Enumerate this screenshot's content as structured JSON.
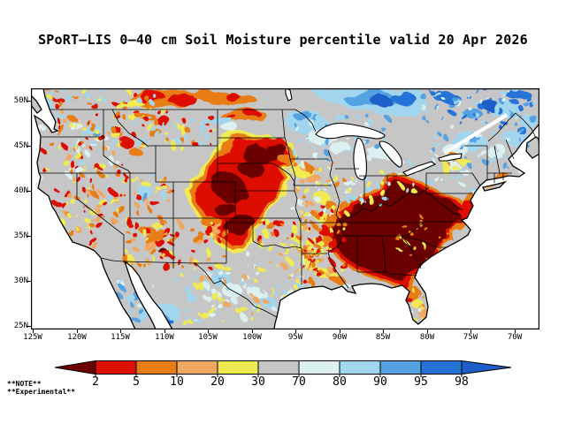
{
  "title": "SPoRT–LIS 0–40 cm Soil Moisture percentile valid 20 Apr 2026",
  "notes": {
    "line1": "**NOTE**",
    "line2": "**Experimental**"
  },
  "map": {
    "lat_ticks": [
      "50N",
      "45N",
      "40N",
      "35N",
      "30N",
      "25N"
    ],
    "lon_ticks": [
      "125W",
      "120W",
      "115W",
      "110W",
      "105W",
      "100W",
      "95W",
      "90W",
      "85W",
      "80W",
      "75W",
      "70W"
    ]
  },
  "colorbar": {
    "labels": [
      "2",
      "5",
      "10",
      "20",
      "30",
      "70",
      "80",
      "90",
      "95",
      "98"
    ],
    "segment_colors": [
      "#dd0f00",
      "#e87d16",
      "#f0a861",
      "#f0ea52",
      "#c6c6c6",
      "#dcf0f2",
      "#a2d6ee",
      "#54a2e2",
      "#2673d8"
    ],
    "left_arrow_color": "#6b0000",
    "right_arrow_color": "#1c5fc8"
  },
  "palette": {
    "maroon": "#6b0000",
    "red": "#dd0f00",
    "orange": "#e87d16",
    "tan": "#f0a861",
    "yellow": "#f0ea52",
    "gray": "#c6c6c6",
    "pale": "#dcf0f2",
    "lblue": "#a2d6ee",
    "mblue": "#54a2e2",
    "blue": "#2673d8",
    "dblue": "#1c5fc8"
  },
  "map_art": {
    "land_color": "#c6c6c6",
    "blobs": [
      [
        "p",
        "yellow",
        "225,48 268,52 296,62 301,78 288,92 297,104 283,120 272,138 262,152 255,168 246,182 228,187 210,177 200,161 188,145 178,129 172,112 186,96 196,84 212,66"
      ],
      [
        "p",
        "orange",
        "228,52 266,56 292,65 297,79 285,92 293,104 279,119 269,136 259,151 252,166 243,179 228,183 212,174 203,159 191,143 182,129 177,113 189,98 199,87 214,70"
      ],
      [
        "p",
        "red",
        "232,57 263,60 287,68 292,80 281,92 289,104 276,118 266,134 256,149 248,163 240,175 228,178 215,170 207,156 196,141 187,129 183,116 193,102 203,91 217,74"
      ],
      [
        "e",
        "maroon",
        262,
        74,
        22,
        12,
        -10
      ],
      [
        "e",
        "maroon",
        250,
        92,
        14,
        9,
        0
      ],
      [
        "e",
        "maroon",
        224,
        112,
        21,
        15,
        20
      ],
      [
        "e",
        "maroon",
        218,
        135,
        12,
        8,
        0
      ],
      [
        "e",
        "maroon",
        236,
        155,
        18,
        11,
        -15
      ],
      [
        "e",
        "red",
        272,
        62,
        15,
        7,
        -5
      ],
      [
        "e",
        "maroon",
        276,
        66,
        10,
        5,
        -5
      ],
      [
        "e",
        "orange",
        288,
        78,
        10,
        6,
        0
      ],
      [
        "e",
        "orange",
        150,
        11,
        42,
        10,
        0
      ],
      [
        "e",
        "red",
        172,
        13,
        18,
        6,
        0
      ],
      [
        "e",
        "red",
        136,
        7,
        14,
        5,
        0
      ],
      [
        "e",
        "orange",
        206,
        9,
        22,
        7,
        0
      ],
      [
        "e",
        "yellow",
        112,
        15,
        14,
        5,
        0
      ],
      [
        "e",
        "orange",
        236,
        11,
        17,
        6,
        0
      ],
      [
        "e",
        "red",
        226,
        8,
        8,
        4,
        0
      ],
      [
        "e",
        "orange",
        240,
        31,
        27,
        8,
        0
      ],
      [
        "e",
        "red",
        251,
        29,
        9,
        4,
        0
      ],
      [
        "e",
        "red",
        226,
        33,
        7,
        3,
        0
      ],
      [
        "e",
        "yellow",
        214,
        37,
        9,
        4,
        0
      ],
      [
        "e",
        "red",
        151,
        38,
        10,
        5,
        15
      ],
      [
        "e",
        "orange",
        131,
        31,
        9,
        4,
        0
      ],
      [
        "e",
        "red",
        108,
        62,
        9,
        6,
        0
      ],
      [
        "e",
        "orange",
        118,
        72,
        7,
        5,
        0
      ],
      [
        "e",
        "red",
        97,
        48,
        6,
        4,
        0
      ],
      [
        "e",
        "orange",
        140,
        50,
        8,
        4,
        0
      ],
      [
        "e",
        "lblue",
        216,
        37,
        13,
        5,
        0
      ],
      [
        "e",
        "pale",
        226,
        45,
        10,
        4,
        0
      ],
      [
        "e",
        "lblue",
        70,
        48,
        10,
        5,
        -10
      ],
      [
        "e",
        "pale",
        80,
        57,
        8,
        4,
        0
      ],
      [
        "e",
        "mblue",
        74,
        52,
        4,
        2,
        0
      ],
      [
        "e",
        "lblue",
        130,
        122,
        7,
        12,
        10
      ],
      [
        "e",
        "mblue",
        132,
        127,
        3,
        6,
        10
      ],
      [
        "p",
        "orange",
        "332,150 352,130 372,122 392,112 408,94 428,102 446,108 458,114 468,122 484,124 500,138 490,152 478,164 480,174 464,184 456,194 444,204 436,218 428,232 414,226 398,218 384,214 368,210 356,200 344,190 336,176 330,162"
      ],
      [
        "p",
        "red",
        "336,152 356,134 376,125 396,115 410,98 428,105 443,110 455,116 466,124 481,127 495,139 486,151 474,162 476,172 461,182 453,192 441,202 433,215 426,227 413,222 399,215 386,211 370,207 358,198 347,189 339,176 333,164"
      ],
      [
        "p",
        "maroon",
        "341,155 358,139 378,128 398,118 412,103 428,109 441,113 450,117 460,124 476,128 489,140 482,151 470,161 472,171 458,180 450,190 438,200 430,212 424,222 412,218 400,211 388,207 373,203 361,195 350,186 342,174 337,165"
      ],
      [
        "e",
        "orange",
        336,
        150,
        9,
        6,
        0
      ],
      [
        "e",
        "red",
        330,
        160,
        7,
        5,
        0
      ],
      [
        "e",
        "yellow",
        326,
        143,
        8,
        5,
        0
      ],
      [
        "e",
        "orange",
        333,
        172,
        8,
        6,
        0
      ],
      [
        "e",
        "red",
        340,
        182,
        6,
        4,
        0
      ],
      [
        "e",
        "yellow",
        322,
        186,
        7,
        4,
        0
      ],
      [
        "e",
        "orange",
        497,
        126,
        7,
        11,
        15
      ],
      [
        "e",
        "red",
        493,
        135,
        5,
        9,
        15
      ],
      [
        "e",
        "yellow",
        505,
        117,
        6,
        4,
        0
      ],
      [
        "e",
        "tan",
        521,
        110,
        10,
        3,
        -8
      ],
      [
        "e",
        "orange",
        532,
        101,
        9,
        4,
        -15
      ],
      [
        "e",
        "red",
        489,
        144,
        4,
        7,
        0
      ],
      [
        "e",
        "orange",
        432,
        232,
        9,
        7,
        0
      ],
      [
        "e",
        "yellow",
        436,
        243,
        7,
        5,
        0
      ],
      [
        "e",
        "tan",
        441,
        252,
        5,
        8,
        0
      ],
      [
        "e",
        "red",
        426,
        238,
        4,
        3,
        0
      ],
      [
        "e",
        "orange",
        312,
        192,
        10,
        6,
        70
      ],
      [
        "e",
        "yellow",
        318,
        203,
        8,
        5,
        0
      ],
      [
        "e",
        "red",
        315,
        184,
        5,
        4,
        0
      ],
      [
        "e",
        "yellow",
        335,
        211,
        12,
        6,
        0
      ],
      [
        "e",
        "orange",
        346,
        216,
        8,
        4,
        0
      ],
      [
        "e",
        "pale",
        353,
        222,
        8,
        3,
        0
      ],
      [
        "e",
        "orange",
        141,
        168,
        14,
        9,
        -20
      ],
      [
        "e",
        "red",
        148,
        177,
        6,
        4,
        0
      ],
      [
        "e",
        "maroon",
        151,
        186,
        5,
        3,
        0
      ],
      [
        "e",
        "red",
        157,
        190,
        6,
        4,
        0
      ],
      [
        "e",
        "orange",
        128,
        158,
        8,
        5,
        0
      ],
      [
        "e",
        "tan",
        135,
        178,
        8,
        5,
        0
      ],
      [
        "e",
        "orange",
        205,
        152,
        12,
        6,
        0
      ],
      [
        "e",
        "red",
        210,
        158,
        5,
        3,
        0
      ],
      [
        "e",
        "orange",
        188,
        170,
        7,
        4,
        0
      ],
      [
        "e",
        "lblue",
        215,
        216,
        13,
        8,
        20
      ],
      [
        "e",
        "pale",
        228,
        229,
        12,
        7,
        0
      ],
      [
        "e",
        "mblue",
        218,
        219,
        5,
        3,
        20
      ],
      [
        "e",
        "lblue",
        262,
        242,
        14,
        8,
        -10
      ],
      [
        "e",
        "pale",
        255,
        231,
        10,
        6,
        0
      ],
      [
        "e",
        "pale",
        290,
        236,
        10,
        4,
        -30
      ],
      [
        "e",
        "yellow",
        305,
        92,
        13,
        7,
        0
      ],
      [
        "e",
        "orange",
        312,
        88,
        6,
        3,
        0
      ],
      [
        "e",
        "tan",
        318,
        101,
        9,
        5,
        0
      ],
      [
        "e",
        "yellow",
        330,
        125,
        10,
        6,
        0
      ],
      [
        "e",
        "orange",
        338,
        132,
        6,
        4,
        0
      ],
      [
        "e",
        "lblue",
        311,
        38,
        24,
        14,
        10
      ],
      [
        "e",
        "mblue",
        306,
        30,
        10,
        6,
        0
      ],
      [
        "e",
        "pale",
        331,
        55,
        18,
        10,
        0
      ],
      [
        "e",
        "lblue",
        368,
        48,
        16,
        5,
        -8
      ],
      [
        "e",
        "pale",
        395,
        72,
        12,
        9,
        0
      ],
      [
        "e",
        "mblue",
        392,
        66,
        4,
        3,
        0
      ],
      [
        "e",
        "pale",
        352,
        70,
        12,
        7,
        0
      ],
      [
        "p",
        "lblue",
        "315,0 440,0 448,20 432,34 405,30 375,26 345,18 325,10"
      ],
      [
        "e",
        "mblue",
        385,
        13,
        30,
        9,
        0
      ],
      [
        "e",
        "dblue",
        398,
        16,
        12,
        6,
        0
      ],
      [
        "e",
        "blue",
        420,
        10,
        14,
        7,
        0
      ],
      [
        "e",
        "blue",
        470,
        10,
        14,
        7,
        0
      ],
      [
        "e",
        "dblue",
        520,
        20,
        10,
        5,
        0
      ],
      [
        "e",
        "blue",
        552,
        8,
        14,
        6,
        0
      ],
      [
        "e",
        "mblue",
        500,
        30,
        12,
        6,
        0
      ],
      [
        "e",
        "gray",
        461,
        31,
        10,
        6,
        0
      ],
      [
        "e",
        "lblue",
        540,
        25,
        16,
        8,
        0
      ],
      [
        "e",
        "lblue",
        565,
        40,
        10,
        8,
        0
      ],
      [
        "e",
        "lblue",
        497,
        62,
        18,
        10,
        -10
      ],
      [
        "e",
        "pale",
        481,
        71,
        14,
        8,
        0
      ],
      [
        "e",
        "mblue",
        505,
        57,
        6,
        4,
        0
      ],
      [
        "e",
        "pale",
        526,
        71,
        12,
        8,
        0
      ],
      [
        "e",
        "lblue",
        548,
        56,
        14,
        9,
        0
      ],
      [
        "e",
        "blue",
        555,
        48,
        6,
        4,
        0
      ],
      [
        "e",
        "orange",
        478,
        82,
        6,
        9,
        10
      ],
      [
        "e",
        "yellow",
        470,
        92,
        5,
        6,
        0
      ],
      [
        "e",
        "lblue",
        150,
        253,
        18,
        12,
        0
      ],
      [
        "e",
        "mblue",
        146,
        259,
        8,
        5,
        0
      ],
      [
        "e",
        "blue",
        155,
        263,
        5,
        3,
        0
      ],
      [
        "e",
        "lblue",
        128,
        253,
        7,
        10,
        20
      ]
    ],
    "speckles": [
      [
        5,
        25,
        100,
        78,
        120,
        1,
        3,
        [
          "orange",
          "red",
          "yellow",
          "lblue",
          "pale",
          "tan"
        ]
      ],
      [
        95,
        26,
        118,
        42,
        70,
        1,
        3,
        [
          "orange",
          "red",
          "yellow",
          "lblue"
        ]
      ],
      [
        58,
        96,
        105,
        58,
        80,
        1,
        3,
        [
          "orange",
          "yellow",
          "red",
          "tan",
          "lblue"
        ]
      ],
      [
        18,
        112,
        52,
        78,
        55,
        1,
        3,
        [
          "yellow",
          "orange",
          "tan",
          "red"
        ]
      ],
      [
        108,
        150,
        115,
        56,
        90,
        1,
        3,
        [
          "orange",
          "tan",
          "yellow",
          "red"
        ]
      ],
      [
        195,
        200,
        70,
        55,
        40,
        1,
        3,
        [
          "pale",
          "lblue",
          "yellow",
          "tan"
        ]
      ],
      [
        240,
        182,
        72,
        72,
        70,
        1,
        3,
        [
          "pale",
          "lblue",
          "yellow",
          "tan",
          "gray"
        ]
      ],
      [
        258,
        150,
        58,
        32,
        40,
        1,
        3,
        [
          "tan",
          "yellow",
          "orange",
          "red"
        ]
      ],
      [
        300,
        176,
        42,
        50,
        40,
        1,
        3,
        [
          "orange",
          "yellow",
          "tan",
          "red"
        ]
      ],
      [
        295,
        84,
        62,
        62,
        55,
        1,
        3,
        [
          "yellow",
          "tan",
          "orange",
          "pale"
        ]
      ],
      [
        355,
        95,
        52,
        40,
        30,
        1,
        3,
        [
          "pale",
          "yellow",
          "lblue"
        ]
      ],
      [
        295,
        25,
        112,
        58,
        60,
        1,
        3,
        [
          "pale",
          "lblue",
          "mblue"
        ]
      ],
      [
        15,
        0,
        130,
        22,
        40,
        1,
        3,
        [
          "orange",
          "yellow",
          "lblue",
          "red"
        ]
      ],
      [
        440,
        0,
        135,
        45,
        70,
        1,
        3,
        [
          "lblue",
          "blue",
          "mblue",
          "pale"
        ]
      ],
      [
        455,
        45,
        120,
        50,
        50,
        1,
        3,
        [
          "pale",
          "lblue",
          "gray",
          "mblue"
        ]
      ],
      [
        415,
        80,
        85,
        38,
        35,
        1,
        3,
        [
          "pale",
          "lblue",
          "yellow"
        ]
      ],
      [
        160,
        210,
        110,
        60,
        45,
        1,
        3,
        [
          "pale",
          "lblue",
          "yellow",
          "gray"
        ]
      ],
      [
        95,
        212,
        48,
        58,
        28,
        1,
        3,
        [
          "lblue",
          "pale",
          "mblue"
        ]
      ],
      [
        415,
        140,
        60,
        55,
        25,
        1,
        2,
        [
          "yellow",
          "orange"
        ]
      ],
      [
        315,
        130,
        40,
        75,
        55,
        1,
        3,
        [
          "red",
          "orange",
          "yellow"
        ]
      ],
      [
        430,
        226,
        20,
        42,
        18,
        1,
        2,
        [
          "orange",
          "yellow",
          "pale",
          "gray"
        ]
      ]
    ]
  }
}
